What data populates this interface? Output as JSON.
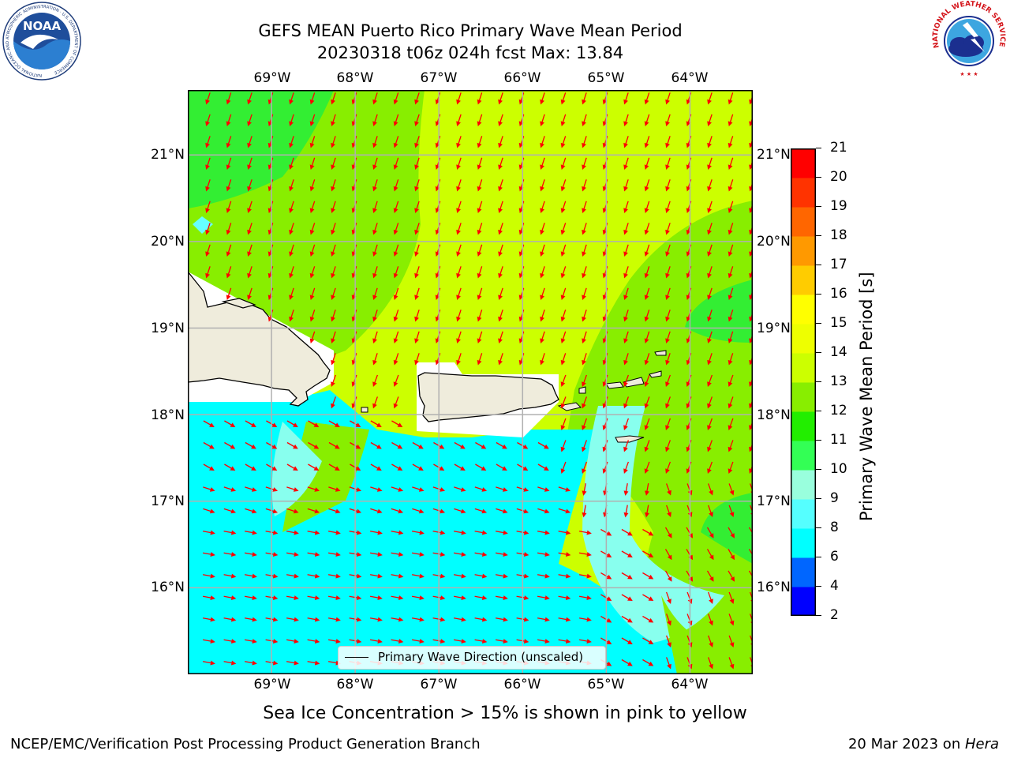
{
  "header": {
    "title_line1": "GEFS MEAN Puerto Rico Primary Wave Mean Period",
    "title_line2": "20230318 t06z 024h fcst   Max: 13.84"
  },
  "logos": {
    "noaa_text": "NOAA",
    "noaa_ring_text": "NATIONAL OCEANIC AND ATMOSPHERIC ADMINISTRATION · U.S. DEPARTMENT OF COMMERCE",
    "nws_ring_text": "NATIONAL WEATHER SERVICE"
  },
  "map": {
    "lon_labels": [
      "69°W",
      "68°W",
      "67°W",
      "66°W",
      "65°W",
      "64°W"
    ],
    "lat_labels": [
      "21°N",
      "20°N",
      "19°N",
      "18°N",
      "17°N",
      "16°N"
    ],
    "lon_range": [
      -70.0,
      -63.25
    ],
    "lat_range": [
      15.0,
      21.75
    ],
    "grid": true,
    "land_color": "#efecdc",
    "arrow_color": "#ff0000",
    "legend_label": "Primary Wave Direction (unscaled)"
  },
  "colorbar": {
    "label": "Primary Wave Mean Period [s]",
    "ticks": [
      "2",
      "4",
      "6",
      "8",
      "9",
      "10",
      "11",
      "12",
      "13",
      "14",
      "15",
      "16",
      "17",
      "18",
      "19",
      "20",
      "21"
    ],
    "colors": [
      "#0000ff",
      "#0066ff",
      "#00ffff",
      "#55ffff",
      "#99ffdd",
      "#33ff55",
      "#22ee00",
      "#88ee00",
      "#ccff00",
      "#eeff00",
      "#ffff00",
      "#ffcc00",
      "#ff9900",
      "#ff6600",
      "#ff3300",
      "#ff0000"
    ]
  },
  "notes": {
    "sea_ice": "Sea Ice Concentration > 15% is shown in pink to yellow"
  },
  "footer": {
    "left": "NCEP/EMC/Verification Post Processing Product Generation Branch",
    "right_prefix": "20 Mar 2023 on ",
    "right_host": "Hera"
  }
}
